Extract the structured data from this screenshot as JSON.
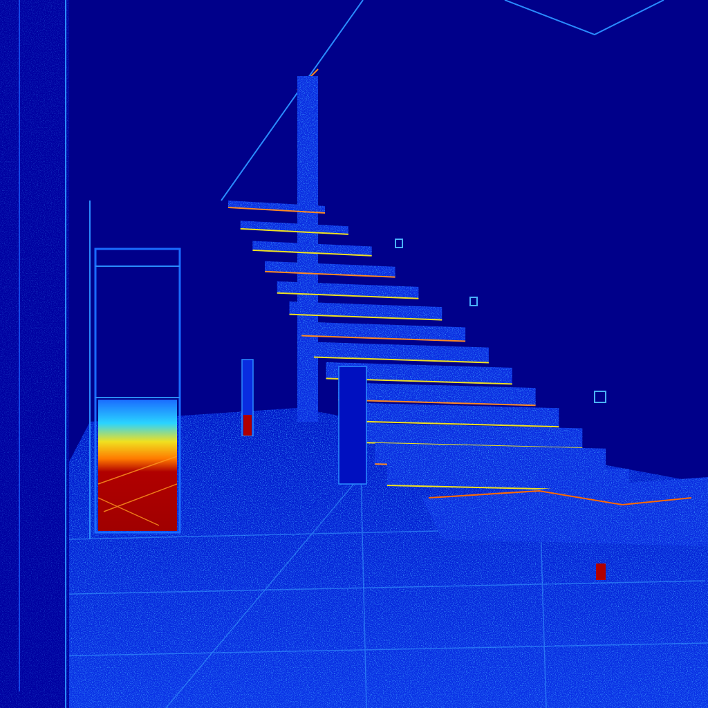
{
  "image": {
    "kind": "error-heatmap",
    "colormap": "jet",
    "colors": {
      "background": "#00008a",
      "deep_blue": "#0000b8",
      "mid_blue": "#0a2ce0",
      "edge_cyan": "#2ad4ff",
      "edge_yellow": "#f0e020",
      "hot_orange": "#ff7a00",
      "hot_red": "#b00000"
    },
    "subjects": [
      "floating-staircase",
      "doorway-hot-region",
      "tiled-floor",
      "left-wall",
      "ceiling-edge"
    ]
  }
}
